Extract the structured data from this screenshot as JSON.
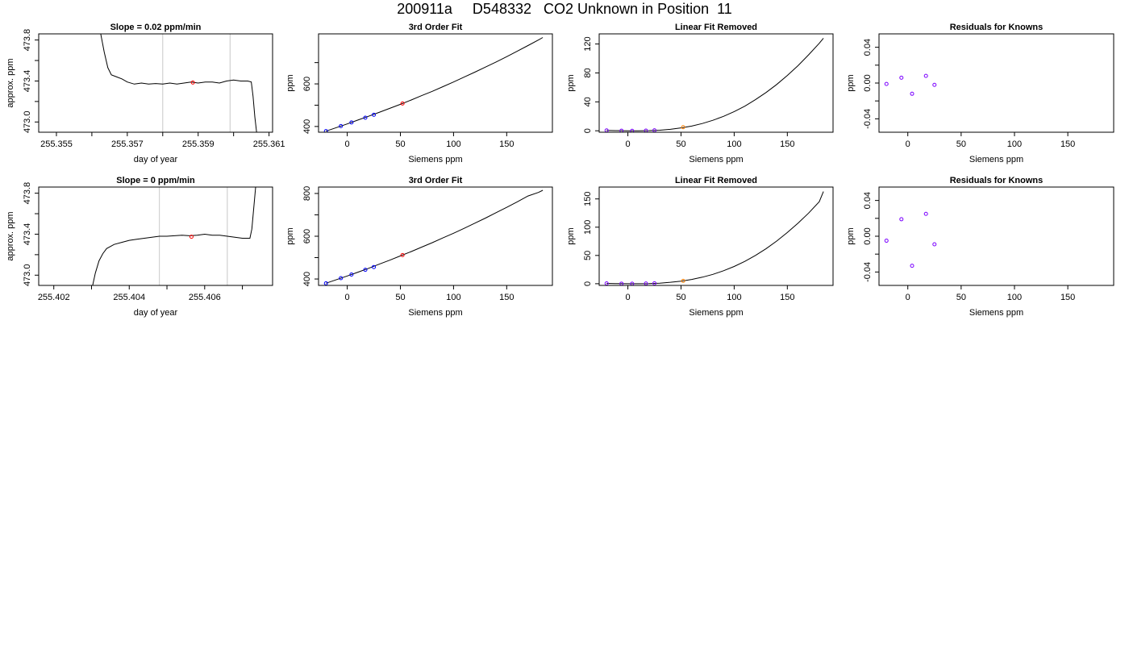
{
  "page": {
    "title": "200911a     D548332   CO2 Unknown in Position  11"
  },
  "chart_data": [
    {
      "id": "r1-timeseries",
      "type": "line",
      "title": "Slope =  0.02  ppm/min",
      "xlabel": "day of year",
      "ylabel": "approx. ppm",
      "xlim": [
        255.3545,
        255.3611
      ],
      "ylim": [
        472.9,
        473.86
      ],
      "xticks": [
        255.355,
        255.356,
        255.357,
        255.358,
        255.359,
        255.36,
        255.361
      ],
      "xtick_labels": [
        "255.355",
        "",
        "255.357",
        "",
        "255.359",
        "",
        "255.361"
      ],
      "yticks": [
        473.0,
        473.2,
        473.4,
        473.6,
        473.8
      ],
      "ytick_labels": [
        "473.0",
        "",
        "473.4",
        "",
        "473.8"
      ],
      "vlines": [
        255.358,
        255.3599
      ],
      "series": [
        {
          "x": [
            255.35625,
            255.35635,
            255.35645,
            255.35655,
            255.3567,
            255.35685,
            255.357,
            255.3572,
            255.3574,
            255.3576,
            255.3578,
            255.358,
            255.3582,
            255.3584,
            255.3586,
            255.3588,
            255.359,
            255.3592,
            255.3594,
            255.3596,
            255.3598,
            255.36,
            255.3602,
            255.3604,
            255.3605,
            255.36055,
            255.3606,
            255.36065
          ],
          "y": [
            473.86,
            473.68,
            473.53,
            473.46,
            473.44,
            473.42,
            473.39,
            473.37,
            473.38,
            473.37,
            473.375,
            473.37,
            473.38,
            473.37,
            473.38,
            473.39,
            473.38,
            473.39,
            473.39,
            473.38,
            473.4,
            473.41,
            473.4,
            473.4,
            473.39,
            473.25,
            473.05,
            472.9
          ]
        }
      ],
      "points": [
        {
          "x": 255.35885,
          "y": 473.385,
          "color": "#ff0000"
        }
      ]
    },
    {
      "id": "r1-fit",
      "type": "line",
      "title": "3rd Order Fit",
      "xlabel": "Siemens ppm",
      "ylabel": "ppm",
      "xlim": [
        -27,
        193
      ],
      "ylim": [
        373,
        835
      ],
      "xticks": [
        0,
        50,
        100,
        150
      ],
      "xtick_labels": [
        "0",
        "50",
        "100",
        "150"
      ],
      "yticks": [
        400,
        500,
        600,
        700
      ],
      "ytick_labels": [
        "400",
        "",
        "600",
        ""
      ],
      "curve_x": [
        -20,
        -10,
        0,
        10,
        20,
        30,
        40,
        50,
        60,
        70,
        80,
        90,
        100,
        110,
        120,
        130,
        140,
        150,
        160,
        170,
        180,
        184
      ],
      "curve_y": [
        378,
        395,
        412,
        430,
        448,
        466,
        485,
        504,
        524,
        545,
        565,
        587,
        609,
        632,
        655,
        679,
        703,
        728,
        754,
        780,
        807,
        818
      ],
      "knowns": {
        "color": "#0000ff",
        "x": [
          -20,
          -6,
          4,
          17,
          25
        ],
        "y": [
          378,
          402,
          419,
          441,
          455
        ]
      },
      "unknown": {
        "color": "#ff0000",
        "x": [
          52
        ],
        "y": [
          508
        ]
      }
    },
    {
      "id": "r1-linear-removed",
      "type": "line",
      "title": "Linear Fit Removed",
      "xlabel": "Siemens ppm",
      "ylabel": "ppm",
      "xlim": [
        -27,
        193
      ],
      "ylim": [
        -2,
        134
      ],
      "xticks": [
        0,
        50,
        100,
        150
      ],
      "xtick_labels": [
        "0",
        "50",
        "100",
        "150"
      ],
      "yticks": [
        0,
        40,
        80,
        120
      ],
      "ytick_labels": [
        "0",
        "40",
        "80",
        "120"
      ],
      "curve_x": [
        -20,
        -10,
        0,
        10,
        20,
        30,
        40,
        50,
        60,
        70,
        80,
        90,
        100,
        110,
        120,
        130,
        140,
        150,
        160,
        170,
        180,
        184
      ],
      "curve_y": [
        0.5,
        0.2,
        0,
        0,
        0.2,
        0.8,
        2,
        4,
        6.5,
        10,
        14.5,
        20,
        26.5,
        34,
        43,
        53,
        64,
        76.5,
        90,
        105,
        121,
        128
      ],
      "knowns": {
        "color": "#7b00ff",
        "x": [
          -20,
          -6,
          4,
          17,
          25
        ],
        "y": [
          0.5,
          0.1,
          0,
          0.2,
          0.6
        ]
      },
      "unknown": {
        "color": "#ff8000",
        "x": [
          52
        ],
        "y": [
          5
        ]
      }
    },
    {
      "id": "r1-residuals",
      "type": "scatter",
      "title": "Residuals for Knowns",
      "xlabel": "Siemens ppm",
      "ylabel": "ppm",
      "xlim": [
        -27,
        193
      ],
      "ylim": [
        -0.055,
        0.055
      ],
      "xticks": [
        0,
        50,
        100,
        150
      ],
      "xtick_labels": [
        "0",
        "50",
        "100",
        "150"
      ],
      "yticks": [
        -0.04,
        -0.02,
        0.0,
        0.02,
        0.04
      ],
      "ytick_labels": [
        "-0.04",
        "",
        "0.00",
        "",
        "0.04"
      ],
      "points": {
        "color": "#7b00ff",
        "x": [
          -20,
          -6,
          4,
          17,
          25
        ],
        "y": [
          -0.001,
          0.006,
          -0.012,
          0.008,
          -0.002
        ]
      }
    },
    {
      "id": "r2-timeseries",
      "type": "line",
      "title": "Slope =  0  ppm/min",
      "xlabel": "day of year",
      "ylabel": "approx. ppm",
      "xlim": [
        255.4016,
        255.4078
      ],
      "ylim": [
        472.9,
        473.86
      ],
      "xticks": [
        255.402,
        255.403,
        255.404,
        255.405,
        255.406,
        255.407
      ],
      "xtick_labels": [
        "255.402",
        "",
        "255.404",
        "",
        "255.406",
        ""
      ],
      "yticks": [
        473.0,
        473.2,
        473.4,
        473.6,
        473.8
      ],
      "ytick_labels": [
        "473.0",
        "",
        "473.4",
        "",
        "473.8"
      ],
      "vlines": [
        255.4048,
        255.4066
      ],
      "series": [
        {
          "x": [
            255.40303,
            255.4031,
            255.4032,
            255.4033,
            255.4034,
            255.4036,
            255.4038,
            255.404,
            255.4042,
            255.4044,
            255.4046,
            255.4048,
            255.405,
            255.4052,
            255.4054,
            255.4056,
            255.4058,
            255.406,
            255.4062,
            255.4064,
            255.4066,
            255.4068,
            255.407,
            255.4072,
            255.40725,
            255.4073,
            255.40735
          ],
          "y": [
            472.9,
            473.02,
            473.14,
            473.21,
            473.26,
            473.3,
            473.32,
            473.34,
            473.35,
            473.36,
            473.37,
            473.38,
            473.38,
            473.385,
            473.39,
            473.385,
            473.39,
            473.4,
            473.39,
            473.39,
            473.38,
            473.37,
            473.36,
            473.36,
            473.45,
            473.65,
            473.86
          ]
        }
      ],
      "points": [
        {
          "x": 255.40565,
          "y": 473.375,
          "color": "#ff0000"
        }
      ]
    },
    {
      "id": "r2-fit",
      "type": "line",
      "title": "3rd Order Fit",
      "xlabel": "Siemens ppm",
      "ylabel": "ppm",
      "xlim": [
        -27,
        193
      ],
      "ylim": [
        370,
        830
      ],
      "xticks": [
        0,
        50,
        100,
        150
      ],
      "xtick_labels": [
        "0",
        "50",
        "100",
        "150"
      ],
      "yticks": [
        400,
        500,
        600,
        700,
        800
      ],
      "ytick_labels": [
        "400",
        "",
        "600",
        "",
        "800"
      ],
      "curve_x": [
        -20,
        -10,
        0,
        10,
        20,
        30,
        40,
        50,
        60,
        70,
        80,
        90,
        100,
        110,
        120,
        130,
        140,
        150,
        160,
        170,
        180,
        184
      ],
      "curve_y": [
        380,
        397,
        414,
        432,
        450,
        469,
        488,
        508,
        528,
        549,
        570,
        592,
        614,
        637,
        661,
        685,
        710,
        735,
        761,
        788,
        805,
        815
      ],
      "knowns": {
        "color": "#0000ff",
        "x": [
          -20,
          -6,
          4,
          17,
          25
        ],
        "y": [
          380,
          404,
          421,
          443,
          456
        ]
      },
      "unknown": {
        "color": "#ff0000",
        "x": [
          52
        ],
        "y": [
          512
        ]
      }
    },
    {
      "id": "r2-linear-removed",
      "type": "line",
      "title": "Linear Fit Removed",
      "xlabel": "Siemens ppm",
      "ylabel": "ppm",
      "xlim": [
        -27,
        193
      ],
      "ylim": [
        -3,
        171
      ],
      "xticks": [
        0,
        50,
        100,
        150
      ],
      "xtick_labels": [
        "0",
        "50",
        "100",
        "150"
      ],
      "yticks": [
        0,
        50,
        100,
        150
      ],
      "ytick_labels": [
        "0",
        "50",
        "100",
        "150"
      ],
      "curve_x": [
        -20,
        -10,
        0,
        10,
        20,
        30,
        40,
        50,
        60,
        70,
        80,
        90,
        100,
        110,
        120,
        130,
        140,
        150,
        160,
        170,
        180,
        184
      ],
      "curve_y": [
        0.6,
        0.2,
        0,
        0,
        0.3,
        1,
        2.5,
        4.5,
        7.5,
        11.5,
        16.5,
        23,
        30.5,
        39.5,
        50,
        62,
        75.5,
        90.5,
        107,
        125,
        145,
        163
      ],
      "knowns": {
        "color": "#7b00ff",
        "x": [
          -20,
          -6,
          4,
          17,
          25
        ],
        "y": [
          0.6,
          0.1,
          0,
          0.3,
          0.7
        ]
      },
      "unknown": {
        "color": "#ff8000",
        "x": [
          52
        ],
        "y": [
          5
        ]
      }
    },
    {
      "id": "r2-residuals",
      "type": "scatter",
      "title": "Residuals for Knowns",
      "xlabel": "Siemens ppm",
      "ylabel": "ppm",
      "xlim": [
        -27,
        193
      ],
      "ylim": [
        -0.055,
        0.055
      ],
      "xticks": [
        0,
        50,
        100,
        150
      ],
      "xtick_labels": [
        "0",
        "50",
        "100",
        "150"
      ],
      "yticks": [
        -0.04,
        -0.02,
        0.0,
        0.02,
        0.04
      ],
      "ytick_labels": [
        "-0.04",
        "",
        "0.00",
        "",
        "0.04"
      ],
      "points": {
        "color": "#7b00ff",
        "x": [
          -20,
          -6,
          4,
          17,
          25
        ],
        "y": [
          -0.005,
          0.019,
          -0.033,
          0.025,
          -0.009
        ]
      }
    }
  ]
}
